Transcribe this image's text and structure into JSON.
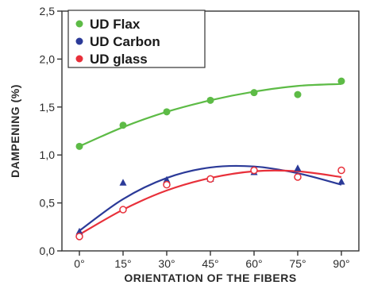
{
  "chart_data": {
    "type": "scatter",
    "title": "",
    "xlabel": "ORIENTATION OF THE FIBERS",
    "ylabel": "DAMPENING (%)",
    "categories": [
      "0°",
      "15°",
      "30°",
      "45°",
      "60°",
      "75°",
      "90°"
    ],
    "x": [
      0,
      15,
      30,
      45,
      60,
      75,
      90
    ],
    "xlim": [
      -6,
      96
    ],
    "ylim": [
      0,
      2.5
    ],
    "yticks": [
      0.0,
      0.5,
      1.0,
      1.5,
      2.0,
      2.5
    ],
    "ytick_labels": [
      "0,0",
      "0,5",
      "1,0",
      "1,5",
      "2,0",
      "2,5"
    ],
    "legend_position": "top-left",
    "grid": false,
    "series": [
      {
        "name": "UD Flax",
        "color": "#5dbb46",
        "marker": "filled-circle",
        "values": [
          1.09,
          1.31,
          1.45,
          1.57,
          1.65,
          1.63,
          1.77
        ],
        "fit": [
          1.09,
          1.29,
          1.45,
          1.57,
          1.66,
          1.72,
          1.74
        ]
      },
      {
        "name": "UD Carbon",
        "color": "#2b3a98",
        "marker": "filled-triangle",
        "values": [
          0.2,
          0.71,
          0.74,
          0.75,
          0.82,
          0.86,
          0.72
        ],
        "fit": [
          0.21,
          0.54,
          0.76,
          0.87,
          0.88,
          0.81,
          0.69
        ]
      },
      {
        "name": "UD glass",
        "color": "#e8303a",
        "marker": "open-circle",
        "values": [
          0.15,
          0.43,
          0.69,
          0.75,
          0.84,
          0.77,
          0.84
        ],
        "fit": [
          0.17,
          0.43,
          0.63,
          0.76,
          0.83,
          0.83,
          0.77
        ]
      }
    ]
  }
}
